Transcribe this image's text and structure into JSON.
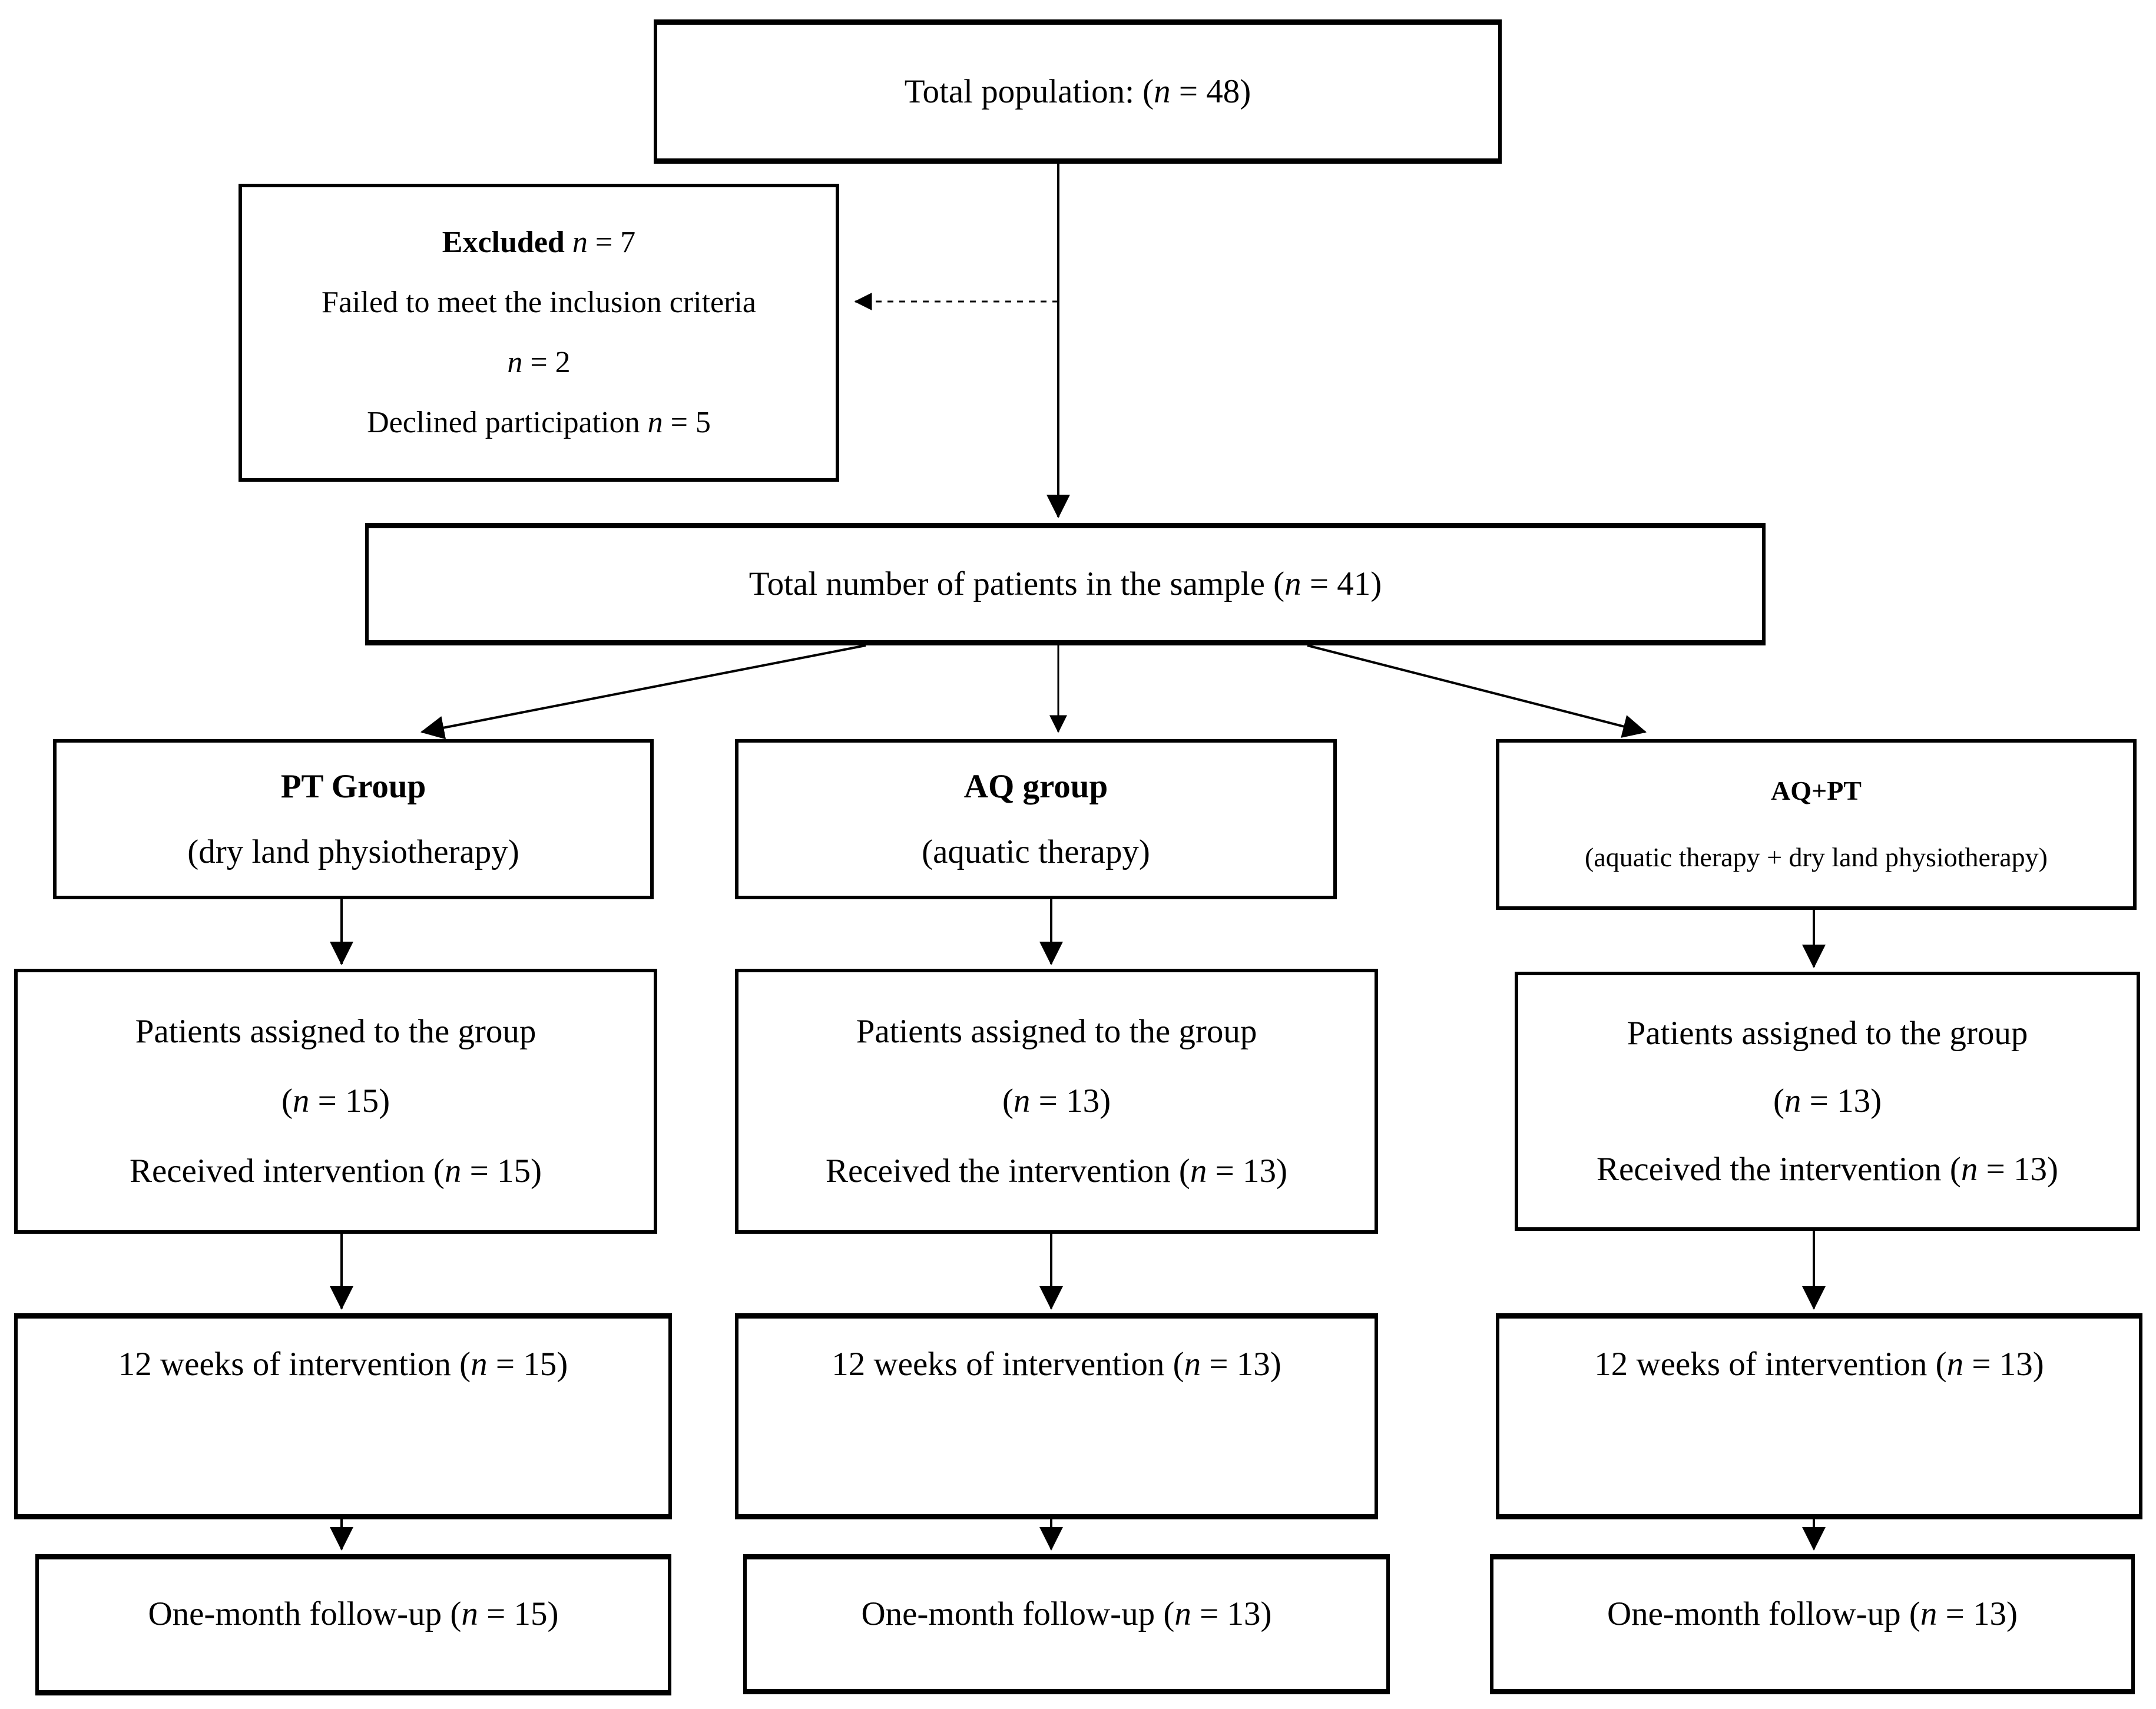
{
  "canvas": {
    "background_color": "#ffffff",
    "line_color": "#000000",
    "text_color": "#000000"
  },
  "boxes": {
    "total_population": {
      "lines": [
        [
          {
            "t": "Total population: ("
          },
          {
            "t": "n",
            "italic": true
          },
          {
            "t": " = 48)"
          }
        ]
      ]
    },
    "excluded": {
      "lines": [
        [
          {
            "t": "Excluded",
            "bold": true
          },
          {
            "t": " "
          },
          {
            "t": "n",
            "italic": true
          },
          {
            "t": " = 7"
          }
        ],
        [
          {
            "t": "Failed to meet the inclusion criteria"
          }
        ],
        [
          {
            "t": "n",
            "italic": true
          },
          {
            "t": " = 2"
          }
        ],
        [
          {
            "t": "Declined participation "
          },
          {
            "t": "n",
            "italic": true
          },
          {
            "t": " = 5"
          }
        ]
      ]
    },
    "sample_total": {
      "lines": [
        [
          {
            "t": "Total number of patients in the sample ("
          },
          {
            "t": "n",
            "italic": true
          },
          {
            "t": " = 41)"
          }
        ]
      ]
    },
    "pt_header": {
      "lines": [
        [
          {
            "t": "PT Group",
            "bold": true
          }
        ],
        [
          {
            "t": "(dry land physiotherapy)"
          }
        ]
      ]
    },
    "aq_header": {
      "lines": [
        [
          {
            "t": "AQ group",
            "bold": true
          }
        ],
        [
          {
            "t": "(aquatic therapy)"
          }
        ]
      ]
    },
    "aqpt_header": {
      "lines": [
        [
          {
            "t": "AQ+PT",
            "bold": true
          }
        ],
        [
          {
            "t": "(aquatic therapy + dry land physiotherapy)"
          }
        ]
      ]
    },
    "pt_assigned": {
      "lines": [
        [
          {
            "t": "Patients assigned to the group"
          }
        ],
        [
          {
            "t": "("
          },
          {
            "t": "n",
            "italic": true
          },
          {
            "t": " = 15)"
          }
        ],
        [
          {
            "t": "Received intervention ("
          },
          {
            "t": "n",
            "italic": true
          },
          {
            "t": " = 15)"
          }
        ]
      ]
    },
    "aq_assigned": {
      "lines": [
        [
          {
            "t": "Patients assigned to the group"
          }
        ],
        [
          {
            "t": "("
          },
          {
            "t": "n",
            "italic": true
          },
          {
            "t": " = 13)"
          }
        ],
        [
          {
            "t": "Received the intervention ("
          },
          {
            "t": "n",
            "italic": true
          },
          {
            "t": " = 13)"
          }
        ]
      ]
    },
    "aqpt_assigned": {
      "lines": [
        [
          {
            "t": "Patients assigned to the group"
          }
        ],
        [
          {
            "t": "("
          },
          {
            "t": "n",
            "italic": true
          },
          {
            "t": " = 13)"
          }
        ],
        [
          {
            "t": "Received the intervention ("
          },
          {
            "t": "n",
            "italic": true
          },
          {
            "t": " = 13)"
          }
        ]
      ]
    },
    "pt_12weeks": {
      "lines": [
        [
          {
            "t": "12 weeks of intervention ("
          },
          {
            "t": "n",
            "italic": true
          },
          {
            "t": " = 15)"
          }
        ]
      ]
    },
    "aq_12weeks": {
      "lines": [
        [
          {
            "t": "12 weeks of intervention ("
          },
          {
            "t": "n",
            "italic": true
          },
          {
            "t": " = 13)"
          }
        ]
      ]
    },
    "aqpt_12weeks": {
      "lines": [
        [
          {
            "t": "12 weeks of intervention ("
          },
          {
            "t": "n",
            "italic": true
          },
          {
            "t": " = 13)"
          }
        ]
      ]
    },
    "pt_followup": {
      "lines": [
        [
          {
            "t": "One-month follow-up ("
          },
          {
            "t": "n",
            "italic": true
          },
          {
            "t": " = 15)"
          }
        ]
      ]
    },
    "aq_followup": {
      "lines": [
        [
          {
            "t": "One-month follow-up ("
          },
          {
            "t": "n",
            "italic": true
          },
          {
            "t": " = 13)"
          }
        ]
      ]
    },
    "aqpt_followup": {
      "lines": [
        [
          {
            "t": "One-month follow-up ("
          },
          {
            "t": "n",
            "italic": true
          },
          {
            "t": " = 13)"
          }
        ]
      ]
    }
  }
}
